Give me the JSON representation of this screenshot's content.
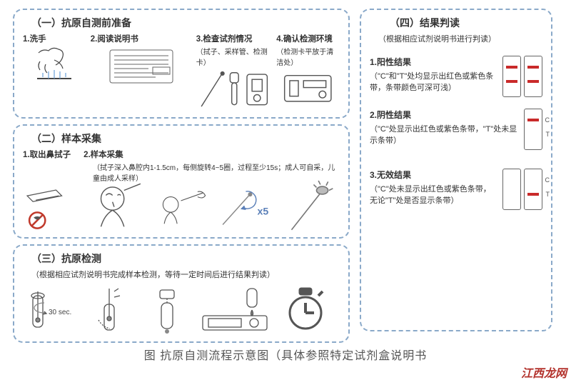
{
  "colors": {
    "panel_border": "#8aa9c9",
    "text": "#333333",
    "band_red": "#c92a2a",
    "caption": "#555555",
    "watermark": "#b3332d",
    "x5_blue": "#5a7fb8",
    "prohibit_red": "#c0392b",
    "clock_gray": "#555555"
  },
  "fonts": {
    "title_pt": 14,
    "body_pt": 11.5,
    "note_pt": 10,
    "caption_pt": 16
  },
  "section1": {
    "title": "（一）抗原自测前准备",
    "steps": [
      {
        "label": "1.洗手",
        "note": ""
      },
      {
        "label": "2.阅读说明书",
        "note": ""
      },
      {
        "label": "3.检查试剂情况",
        "note": "（拭子、采样管、检测卡）"
      },
      {
        "label": "4.确认检测环境",
        "note": "（检测卡平放于清洁处）"
      }
    ]
  },
  "section2": {
    "title": "（二）样本采集",
    "step1_label": "1.取出鼻拭子",
    "step2_label": "2.样本采集",
    "step2_note": "（拭子深入鼻腔内1-1.5cm，每侧旋转4~5圈，过程至少15s；成人可自采，儿童由成人采样）",
    "x5_label": "x5"
  },
  "section3": {
    "title": "（三）抗原检测",
    "subtitle": "（根据相应试剂说明书完成样本检测，等待一定时间后进行结果判读）",
    "sec_label": "30 sec."
  },
  "section4": {
    "title": "（四）结果判读",
    "subtitle": "（根据相应试剂说明书进行判读）",
    "results": [
      {
        "title": "1.阳性结果",
        "desc": "（\"C\"和\"T\"处均显示出红色或紫色条带，条带颜色可深可浅）",
        "cassettes": [
          {
            "c": true,
            "t": true,
            "labels": true
          },
          {
            "c": true,
            "t": true,
            "labels": false
          }
        ]
      },
      {
        "title": "2.阴性结果",
        "desc": "（\"C\"处显示出红色或紫色条带，\"T\"处未显示条带）",
        "cassettes": [
          {
            "c": true,
            "t": false,
            "labels": true
          }
        ]
      },
      {
        "title": "3.无效结果",
        "desc": "（\"C\"处未显示出红色或紫色条带，无论\"T\"处是否显示条带）",
        "cassettes": [
          {
            "c": false,
            "t": false,
            "labels": true
          },
          {
            "c": false,
            "t": true,
            "labels": true
          }
        ]
      }
    ],
    "ct_labels": {
      "c": "C",
      "t": "T"
    }
  },
  "caption": "图 抗原自测流程示意图（具体参照特定试剂盒说明书",
  "watermark": "江西龙网"
}
